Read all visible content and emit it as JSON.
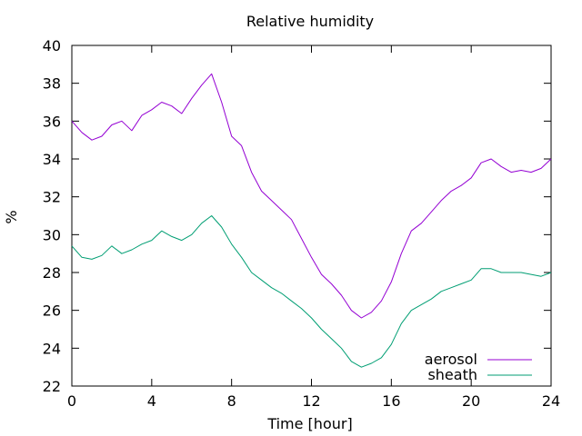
{
  "chart_data": {
    "type": "line",
    "title": "Relative humidity",
    "xlabel": "Time [hour]",
    "ylabel": "%",
    "xlim": [
      0,
      24
    ],
    "ylim": [
      22,
      40
    ],
    "xticks": [
      0,
      4,
      8,
      12,
      16,
      20,
      24
    ],
    "yticks": [
      22,
      24,
      26,
      28,
      30,
      32,
      34,
      36,
      38,
      40
    ],
    "grid": false,
    "legend": "bottom-right",
    "series": [
      {
        "name": "aerosol",
        "color": "#9400d3",
        "x": [
          0,
          0.5,
          1,
          1.5,
          2,
          2.5,
          3,
          3.5,
          4,
          4.5,
          5,
          5.5,
          6,
          6.5,
          7,
          7.5,
          8,
          8.5,
          9,
          9.5,
          10,
          10.5,
          11,
          11.5,
          12,
          12.5,
          13,
          13.5,
          14,
          14.5,
          15,
          15.5,
          16,
          16.5,
          17,
          17.5,
          18,
          18.5,
          19,
          19.5,
          20,
          20.5,
          21,
          21.5,
          22,
          22.5,
          23,
          23.5,
          24
        ],
        "y": [
          36.0,
          35.4,
          35.0,
          35.2,
          35.8,
          36.0,
          35.5,
          36.3,
          36.6,
          37.0,
          36.8,
          36.4,
          37.2,
          37.9,
          38.5,
          37.0,
          35.2,
          34.7,
          33.3,
          32.3,
          31.8,
          31.3,
          30.8,
          29.8,
          28.8,
          27.9,
          27.4,
          26.8,
          26.0,
          25.6,
          25.9,
          26.5,
          27.5,
          29.0,
          30.2,
          30.6,
          31.2,
          31.8,
          32.3,
          32.6,
          33.0,
          33.8,
          34.0,
          33.6,
          33.3,
          33.4,
          33.3,
          33.5,
          34.0
        ]
      },
      {
        "name": "sheath",
        "color": "#009e73",
        "x": [
          0,
          0.5,
          1,
          1.5,
          2,
          2.5,
          3,
          3.5,
          4,
          4.5,
          5,
          5.5,
          6,
          6.5,
          7,
          7.5,
          8,
          8.5,
          9,
          9.5,
          10,
          10.5,
          11,
          11.5,
          12,
          12.5,
          13,
          13.5,
          14,
          14.5,
          15,
          15.5,
          16,
          16.5,
          17,
          17.5,
          18,
          18.5,
          19,
          19.5,
          20,
          20.5,
          21,
          21.5,
          22,
          22.5,
          23,
          23.5,
          24
        ],
        "y": [
          29.4,
          28.8,
          28.7,
          28.9,
          29.4,
          29.0,
          29.2,
          29.5,
          29.7,
          30.2,
          29.9,
          29.7,
          30.0,
          30.6,
          31.0,
          30.4,
          29.5,
          28.8,
          28.0,
          27.6,
          27.2,
          26.9,
          26.5,
          26.1,
          25.6,
          25.0,
          24.5,
          24.0,
          23.3,
          23.0,
          23.2,
          23.5,
          24.2,
          25.3,
          26.0,
          26.3,
          26.6,
          27.0,
          27.2,
          27.4,
          27.6,
          28.2,
          28.2,
          28.0,
          28.0,
          28.0,
          27.9,
          27.8,
          28.0
        ]
      }
    ]
  }
}
